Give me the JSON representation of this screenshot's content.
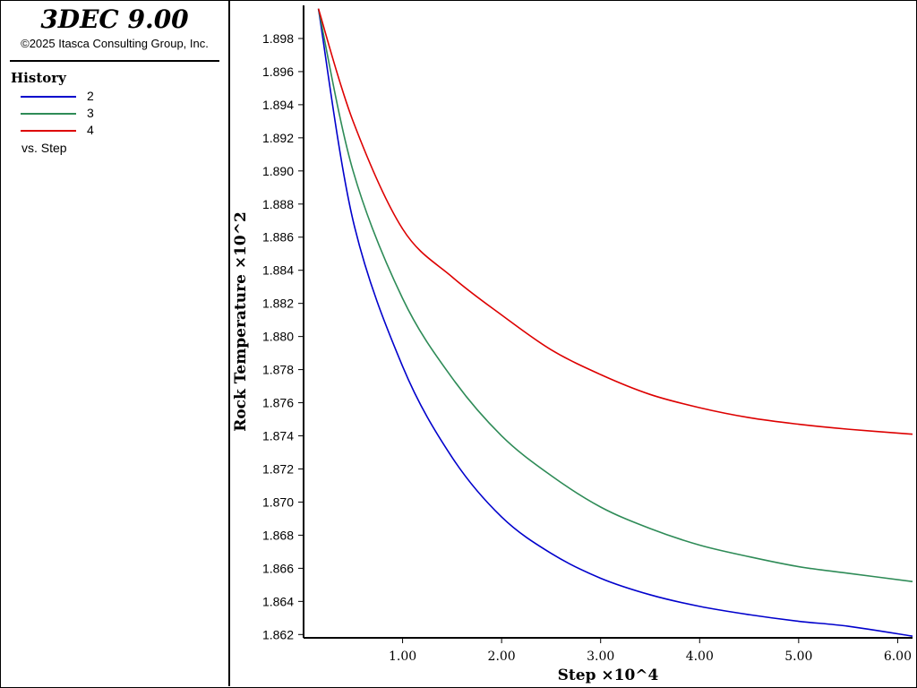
{
  "app": {
    "title": "3DEC 9.00",
    "copyright": "©2025 Itasca Consulting Group, Inc."
  },
  "legend": {
    "heading": "History",
    "items": [
      {
        "label": "2",
        "color": "#0000cc"
      },
      {
        "label": "3",
        "color": "#2e8b57"
      },
      {
        "label": "4",
        "color": "#dd0000"
      }
    ],
    "footer": "vs. Step"
  },
  "chart_data": {
    "type": "line",
    "xlabel": "Step ×10^4",
    "ylabel": "Rock Temperature ×10^2",
    "xlim": [
      0.0,
      6.15
    ],
    "ylim": [
      1.8618,
      1.9
    ],
    "xticks": [
      "1.00",
      "2.00",
      "3.00",
      "4.00",
      "5.00",
      "6.00"
    ],
    "yticks": [
      "1.862",
      "1.864",
      "1.866",
      "1.868",
      "1.870",
      "1.872",
      "1.874",
      "1.876",
      "1.878",
      "1.880",
      "1.882",
      "1.884",
      "1.886",
      "1.888",
      "1.890",
      "1.892",
      "1.894",
      "1.896",
      "1.898"
    ],
    "grid": false,
    "legend_position": "left-panel",
    "series": [
      {
        "name": "2",
        "color": "#0000cc",
        "x": [
          0.15,
          0.5,
          1.0,
          1.5,
          2.0,
          2.5,
          3.0,
          3.5,
          4.0,
          4.5,
          5.0,
          5.5,
          6.15
        ],
        "y": [
          1.8998,
          1.887,
          1.8782,
          1.8727,
          1.8691,
          1.8669,
          1.8654,
          1.8644,
          1.8637,
          1.8632,
          1.8628,
          1.8625,
          1.8619
        ]
      },
      {
        "name": "3",
        "color": "#2e8b57",
        "x": [
          0.15,
          0.5,
          1.0,
          1.5,
          2.0,
          2.5,
          3.0,
          3.5,
          4.0,
          4.5,
          5.0,
          5.5,
          6.15
        ],
        "y": [
          1.8998,
          1.89,
          1.8823,
          1.8775,
          1.874,
          1.8716,
          1.8697,
          1.8684,
          1.8674,
          1.8667,
          1.8661,
          1.8657,
          1.8652
        ]
      },
      {
        "name": "4",
        "color": "#dd0000",
        "x": [
          0.15,
          0.5,
          1.0,
          1.5,
          2.0,
          2.5,
          3.0,
          3.5,
          4.0,
          4.5,
          5.0,
          5.5,
          6.15
        ],
        "y": [
          1.8998,
          1.893,
          1.8865,
          1.8836,
          1.8813,
          1.8792,
          1.8777,
          1.8765,
          1.8757,
          1.8751,
          1.8747,
          1.8744,
          1.8741
        ]
      }
    ]
  }
}
